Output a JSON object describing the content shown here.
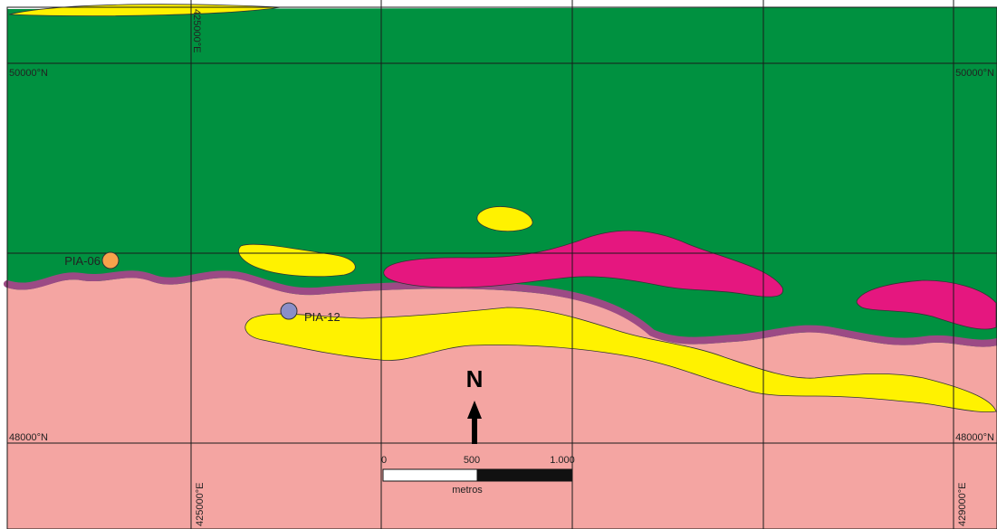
{
  "map": {
    "colors": {
      "green_unit": "#009140",
      "pink_unit": "#f4a5a2",
      "contact_band": "#9c4a85",
      "yellow_unit": "#fff200",
      "magenta_unit": "#e5177f",
      "grid": "#1a1a1a",
      "scale_white": "#ffffff",
      "scale_black": "#111111"
    },
    "grid_labels": {
      "n_50000_left": "50000°N",
      "n_50000_right": "50000°N",
      "n_48000_left": "48000°N",
      "n_48000_right": "48000°N",
      "e_425000_top": "425000°E",
      "e_425000_bottom": "425000°E",
      "e_429000_bottom": "429000°E"
    },
    "samples": [
      {
        "id": "PIA-06",
        "color": "#f7a24b"
      },
      {
        "id": "PIA-12",
        "color": "#8a8fc8"
      }
    ],
    "north_arrow": {
      "label": "N"
    },
    "scale_bar": {
      "ticks": [
        "0",
        "500",
        "1.000"
      ],
      "unit": "metros"
    }
  }
}
